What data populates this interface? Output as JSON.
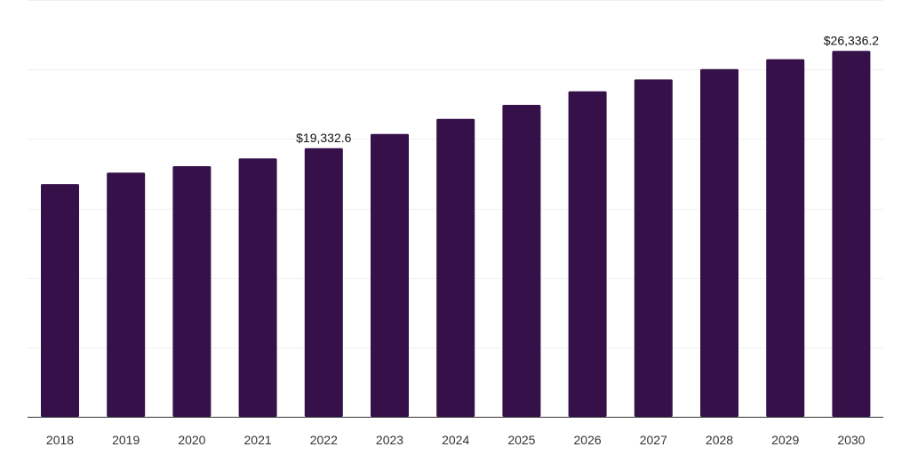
{
  "chart_data": {
    "type": "bar",
    "title": "",
    "xlabel": "",
    "ylabel": "",
    "categories": [
      "2018",
      "2019",
      "2020",
      "2021",
      "2022",
      "2023",
      "2024",
      "2025",
      "2026",
      "2027",
      "2028",
      "2029",
      "2030"
    ],
    "values": [
      16750,
      17580,
      18040,
      18600,
      19332.6,
      20360,
      21450,
      22450,
      23430,
      24280,
      25030,
      25740,
      26336.2
    ],
    "ylim": [
      0,
      30000
    ],
    "y_gridlines": [
      0,
      5000,
      10000,
      15000,
      20000,
      25000,
      30000
    ],
    "y_tick_labels_visible": false,
    "grid": true,
    "legend": "none",
    "data_labels": [
      {
        "category": "2022",
        "text": "$19,332.6"
      },
      {
        "category": "2030",
        "text": "$26,336.2"
      }
    ],
    "colors": {
      "bar": "#361149",
      "gridline": "#f0f0f0",
      "axis": "#333333",
      "text": "#333333"
    }
  }
}
